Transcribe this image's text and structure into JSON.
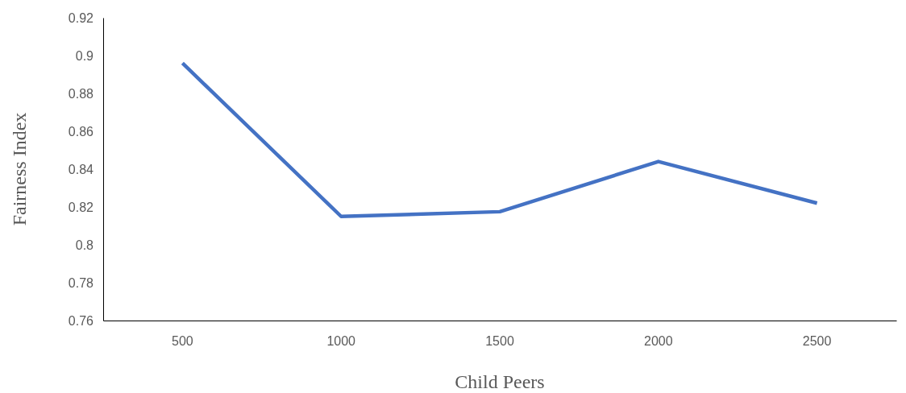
{
  "chart_data": {
    "type": "line",
    "xlabel": "Child Peers",
    "ylabel": "Fairness Index",
    "categories": [
      "500",
      "1000",
      "1500",
      "2000",
      "2500"
    ],
    "series": [
      {
        "color": "#4472c4",
        "values": [
          0.896,
          0.815,
          0.8175,
          0.844,
          0.822
        ]
      }
    ],
    "ylim": [
      0.76,
      0.92
    ],
    "yticks": [
      0.76,
      0.78,
      0.8,
      0.82,
      0.84,
      0.86,
      0.88,
      0.9,
      0.92
    ],
    "grid": false
  }
}
